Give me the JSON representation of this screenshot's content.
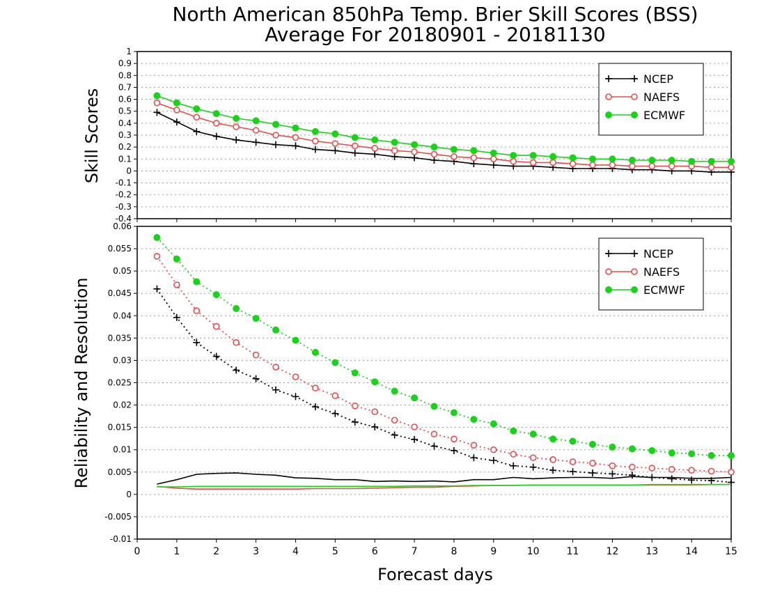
{
  "title_line1": "North American 850hPa Temp. Brier Skill Scores (BSS)",
  "title_line2": "Average For 20180901 - 20181130",
  "xlabel": "Forecast days",
  "x_ticks": [
    "0",
    "1",
    "2",
    "3",
    "4",
    "5",
    "6",
    "7",
    "8",
    "9",
    "10",
    "11",
    "12",
    "13",
    "14",
    "15"
  ],
  "colors": {
    "NCEP": "#000000",
    "NAEFS": "#e84a4a",
    "ECMWF": "#19d219"
  },
  "chart_data": [
    {
      "type": "line",
      "ylabel": "Skill Scores",
      "xlim": [
        0,
        15
      ],
      "ylim": [
        -0.4,
        1
      ],
      "y_ticks": [
        "-0.4",
        "-0.3",
        "-0.2",
        "-0.1",
        "0",
        "0.1",
        "0.2",
        "0.3",
        "0.4",
        "0.5",
        "0.6",
        "0.7",
        "0.8",
        "0.9",
        "1"
      ],
      "grid": true,
      "legend": "top-right",
      "x": [
        0.5,
        1,
        1.5,
        2,
        2.5,
        3,
        3.5,
        4,
        4.5,
        5,
        5.5,
        6,
        6.5,
        7,
        7.5,
        8,
        8.5,
        9,
        9.5,
        10,
        10.5,
        11,
        11.5,
        12,
        12.5,
        13,
        13.5,
        14,
        14.5,
        15
      ],
      "series": [
        {
          "name": "NCEP",
          "values": [
            0.49,
            0.41,
            0.33,
            0.29,
            0.26,
            0.24,
            0.22,
            0.21,
            0.18,
            0.17,
            0.15,
            0.14,
            0.12,
            0.11,
            0.09,
            0.08,
            0.06,
            0.05,
            0.04,
            0.04,
            0.03,
            0.02,
            0.02,
            0.02,
            0.01,
            0.01,
            0.0,
            0.0,
            -0.01,
            -0.01
          ]
        },
        {
          "name": "NAEFS",
          "values": [
            0.57,
            0.51,
            0.45,
            0.4,
            0.37,
            0.34,
            0.3,
            0.28,
            0.25,
            0.23,
            0.21,
            0.19,
            0.17,
            0.16,
            0.14,
            0.12,
            0.11,
            0.1,
            0.08,
            0.07,
            0.07,
            0.06,
            0.05,
            0.05,
            0.04,
            0.04,
            0.04,
            0.04,
            0.03,
            0.03
          ]
        },
        {
          "name": "ECMWF",
          "values": [
            0.63,
            0.57,
            0.52,
            0.48,
            0.44,
            0.42,
            0.39,
            0.36,
            0.33,
            0.31,
            0.28,
            0.26,
            0.24,
            0.22,
            0.2,
            0.18,
            0.17,
            0.15,
            0.13,
            0.13,
            0.12,
            0.11,
            0.1,
            0.1,
            0.09,
            0.09,
            0.09,
            0.08,
            0.08,
            0.08
          ]
        }
      ]
    },
    {
      "type": "line",
      "ylabel": "Reliability and Resolution",
      "xlim": [
        0,
        15
      ],
      "ylim": [
        -0.01,
        0.06
      ],
      "y_ticks": [
        "-0.01",
        "-0.005",
        "0",
        "0.005",
        "0.01",
        "0.015",
        "0.02",
        "0.025",
        "0.03",
        "0.035",
        "0.04",
        "0.045",
        "0.05",
        "0.055",
        "0.06"
      ],
      "grid": true,
      "legend": "top-right",
      "x": [
        0.5,
        1,
        1.5,
        2,
        2.5,
        3,
        3.5,
        4,
        4.5,
        5,
        5.5,
        6,
        6.5,
        7,
        7.5,
        8,
        8.5,
        9,
        9.5,
        10,
        10.5,
        11,
        11.5,
        12,
        12.5,
        13,
        13.5,
        14,
        14.5,
        15
      ],
      "series": [
        {
          "name": "NCEP",
          "component": "resolution",
          "style": "dotted",
          "values": [
            0.046,
            0.0396,
            0.034,
            0.0309,
            0.0278,
            0.0259,
            0.0234,
            0.0219,
            0.0196,
            0.0181,
            0.0162,
            0.0151,
            0.0133,
            0.0123,
            0.0108,
            0.0098,
            0.0082,
            0.0076,
            0.0064,
            0.0061,
            0.0054,
            0.0051,
            0.0048,
            0.0046,
            0.0043,
            0.0038,
            0.0035,
            0.0032,
            0.0031,
            0.0027
          ]
        },
        {
          "name": "NAEFS",
          "component": "resolution",
          "style": "dotted",
          "values": [
            0.0533,
            0.0469,
            0.0411,
            0.0376,
            0.034,
            0.0312,
            0.0285,
            0.0263,
            0.0238,
            0.0221,
            0.0198,
            0.0185,
            0.0166,
            0.0151,
            0.0135,
            0.0124,
            0.011,
            0.01,
            0.009,
            0.0082,
            0.0078,
            0.0073,
            0.007,
            0.0064,
            0.0061,
            0.0059,
            0.0056,
            0.0054,
            0.0052,
            0.005
          ]
        },
        {
          "name": "ECMWF",
          "component": "resolution",
          "style": "dotted",
          "values": [
            0.0575,
            0.0527,
            0.0476,
            0.0447,
            0.0416,
            0.0394,
            0.0368,
            0.0345,
            0.0318,
            0.0295,
            0.0272,
            0.0252,
            0.0231,
            0.0216,
            0.0197,
            0.0183,
            0.0168,
            0.0158,
            0.0142,
            0.0135,
            0.0124,
            0.0119,
            0.0112,
            0.0106,
            0.0102,
            0.0098,
            0.0093,
            0.0091,
            0.0087,
            0.0087
          ]
        },
        {
          "name": "NCEP",
          "component": "reliability",
          "style": "solid",
          "values": [
            0.0023,
            0.0033,
            0.0045,
            0.0047,
            0.0048,
            0.0045,
            0.0043,
            0.0037,
            0.0036,
            0.0033,
            0.0033,
            0.0029,
            0.003,
            0.0029,
            0.003,
            0.0028,
            0.0033,
            0.0033,
            0.0038,
            0.0035,
            0.0037,
            0.0038,
            0.0038,
            0.0036,
            0.004,
            0.0038,
            0.0038,
            0.0036,
            0.0036,
            0.0038
          ]
        },
        {
          "name": "NAEFS",
          "component": "reliability",
          "style": "solid",
          "values": [
            0.0018,
            0.0014,
            0.0012,
            0.0012,
            0.0012,
            0.0012,
            0.0012,
            0.0012,
            0.0013,
            0.0013,
            0.0013,
            0.0014,
            0.0015,
            0.0016,
            0.0016,
            0.0018,
            0.0019,
            0.002,
            0.002,
            0.0021,
            0.0021,
            0.0021,
            0.0021,
            0.0021,
            0.0021,
            0.0021,
            0.0021,
            0.0021,
            0.0022,
            0.0022
          ]
        },
        {
          "name": "ECMWF",
          "component": "reliability",
          "style": "solid",
          "values": [
            0.0017,
            0.0017,
            0.0018,
            0.0018,
            0.0018,
            0.0018,
            0.0018,
            0.0018,
            0.0018,
            0.0018,
            0.0018,
            0.0018,
            0.0018,
            0.0019,
            0.0019,
            0.0019,
            0.002,
            0.002,
            0.002,
            0.0021,
            0.0021,
            0.0021,
            0.0021,
            0.0021,
            0.0021,
            0.0022,
            0.0022,
            0.0022,
            0.0022,
            0.0022
          ]
        }
      ]
    }
  ]
}
